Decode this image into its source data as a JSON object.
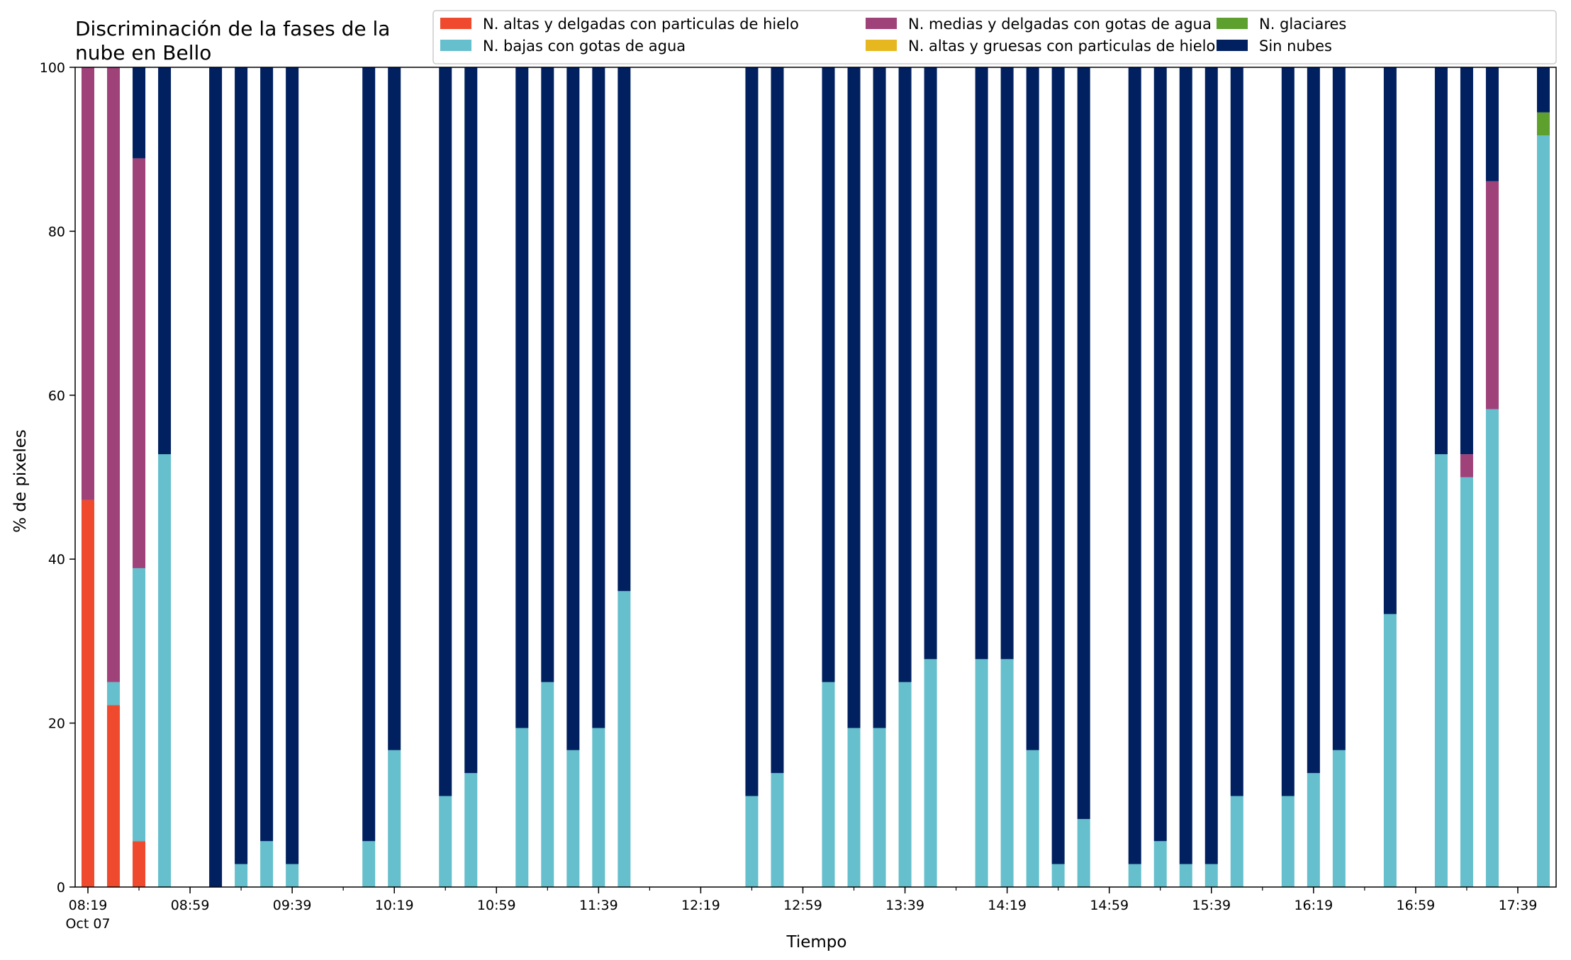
{
  "chart_data": {
    "type": "bar",
    "stacked": true,
    "title": "Discriminación de la fases de la nube en Bello",
    "title_lines": [
      "Discriminación de la fases de la",
      "nube en Bello"
    ],
    "xlabel": "Tiempo",
    "ylabel": "% de pixeles",
    "ylim": [
      0,
      100
    ],
    "yticks": [
      0,
      20,
      40,
      60,
      80,
      100
    ],
    "x_date_label": "Oct 07",
    "x_range_minutes": [
      "08:14",
      "17:54"
    ],
    "major_ticks": [
      "08:19",
      "08:59",
      "09:39",
      "10:19",
      "10:59",
      "11:39",
      "12:19",
      "12:59",
      "13:39",
      "14:19",
      "14:59",
      "15:39",
      "16:19",
      "16:59",
      "17:39"
    ],
    "minor_tick_step_minutes": 20,
    "bar_width_minutes": 5,
    "grid": false,
    "legend_position": "top-right",
    "series": [
      {
        "name": "N. altas y delgadas con particulas de hielo",
        "color": "#ef4a2d"
      },
      {
        "name": "N. altas y gruesas con particulas de hielo",
        "color": "#e6b71e"
      },
      {
        "name": "N. bajas con gotas de agua",
        "color": "#65bfcc"
      },
      {
        "name": "N. glaciares",
        "color": "#5da02e"
      },
      {
        "name": "N. medias y delgadas con gotas de agua",
        "color": "#9f427a"
      },
      {
        "name": "Sin nubes",
        "color": "#002060"
      }
    ],
    "legend_order": [
      0,
      2,
      4,
      1,
      3,
      5
    ],
    "bars": [
      {
        "time": "08:19",
        "values": [
          47.2,
          0,
          0,
          0,
          52.8,
          0
        ]
      },
      {
        "time": "08:29",
        "values": [
          22.2,
          0,
          2.8,
          0,
          75.0,
          0
        ]
      },
      {
        "time": "08:39",
        "values": [
          5.6,
          0,
          33.3,
          0,
          50.0,
          11.1
        ]
      },
      {
        "time": "08:49",
        "values": [
          0,
          0,
          52.8,
          0,
          0,
          47.2
        ]
      },
      {
        "time": "09:09",
        "values": [
          0,
          0,
          0,
          0,
          0,
          100
        ]
      },
      {
        "time": "09:19",
        "values": [
          0,
          0,
          2.8,
          0,
          0,
          97.2
        ]
      },
      {
        "time": "09:29",
        "values": [
          0,
          0,
          5.6,
          0,
          0,
          94.4
        ]
      },
      {
        "time": "09:39",
        "values": [
          0,
          0,
          2.8,
          0,
          0,
          97.2
        ]
      },
      {
        "time": "10:09",
        "values": [
          0,
          0,
          5.6,
          0,
          0,
          94.4
        ]
      },
      {
        "time": "10:19",
        "values": [
          0,
          0,
          16.7,
          0,
          0,
          83.3
        ]
      },
      {
        "time": "10:39",
        "values": [
          0,
          0,
          11.1,
          0,
          0,
          88.9
        ]
      },
      {
        "time": "10:49",
        "values": [
          0,
          0,
          13.9,
          0,
          0,
          86.1
        ]
      },
      {
        "time": "11:09",
        "values": [
          0,
          0,
          19.4,
          0,
          0,
          80.6
        ]
      },
      {
        "time": "11:19",
        "values": [
          0,
          0,
          25.0,
          0,
          0,
          75.0
        ]
      },
      {
        "time": "11:29",
        "values": [
          0,
          0,
          16.7,
          0,
          0,
          83.3
        ]
      },
      {
        "time": "11:39",
        "values": [
          0,
          0,
          19.4,
          0,
          0,
          80.6
        ]
      },
      {
        "time": "11:49",
        "values": [
          0,
          0,
          36.1,
          0,
          0,
          63.9
        ]
      },
      {
        "time": "12:39",
        "values": [
          0,
          0,
          11.1,
          0,
          0,
          88.9
        ]
      },
      {
        "time": "12:49",
        "values": [
          0,
          0,
          13.9,
          0,
          0,
          86.1
        ]
      },
      {
        "time": "13:09",
        "values": [
          0,
          0,
          25.0,
          0,
          0,
          75.0
        ]
      },
      {
        "time": "13:19",
        "values": [
          0,
          0,
          19.4,
          0,
          0,
          80.6
        ]
      },
      {
        "time": "13:29",
        "values": [
          0,
          0,
          19.4,
          0,
          0,
          80.6
        ]
      },
      {
        "time": "13:39",
        "values": [
          0,
          0,
          25.0,
          0,
          0,
          75.0
        ]
      },
      {
        "time": "13:49",
        "values": [
          0,
          0,
          27.8,
          0,
          0,
          72.2
        ]
      },
      {
        "time": "14:09",
        "values": [
          0,
          0,
          27.8,
          0,
          0,
          72.2
        ]
      },
      {
        "time": "14:19",
        "values": [
          0,
          0,
          27.8,
          0,
          0,
          72.2
        ]
      },
      {
        "time": "14:29",
        "values": [
          0,
          0,
          16.7,
          0,
          0,
          83.3
        ]
      },
      {
        "time": "14:39",
        "values": [
          0,
          0,
          2.8,
          0,
          0,
          97.2
        ]
      },
      {
        "time": "14:49",
        "values": [
          0,
          0,
          8.3,
          0,
          0,
          91.7
        ]
      },
      {
        "time": "15:09",
        "values": [
          0,
          0,
          2.8,
          0,
          0,
          97.2
        ]
      },
      {
        "time": "15:19",
        "values": [
          0,
          0,
          5.6,
          0,
          0,
          94.4
        ]
      },
      {
        "time": "15:29",
        "values": [
          0,
          0,
          2.8,
          0,
          0,
          97.2
        ]
      },
      {
        "time": "15:39",
        "values": [
          0,
          0,
          2.8,
          0,
          0,
          97.2
        ]
      },
      {
        "time": "15:49",
        "values": [
          0,
          0,
          11.1,
          0,
          0,
          88.9
        ]
      },
      {
        "time": "16:09",
        "values": [
          0,
          0,
          11.1,
          0,
          0,
          88.9
        ]
      },
      {
        "time": "16:19",
        "values": [
          0,
          0,
          13.9,
          0,
          0,
          86.1
        ]
      },
      {
        "time": "16:29",
        "values": [
          0,
          0,
          16.7,
          0,
          0,
          83.3
        ]
      },
      {
        "time": "16:49",
        "values": [
          0,
          0,
          33.3,
          0,
          0,
          66.7
        ]
      },
      {
        "time": "17:09",
        "values": [
          0,
          0,
          52.8,
          0,
          0,
          47.2
        ]
      },
      {
        "time": "17:19",
        "values": [
          0,
          0,
          50.0,
          0,
          2.8,
          47.2
        ]
      },
      {
        "time": "17:29",
        "values": [
          0,
          0,
          58.3,
          0,
          27.8,
          13.9
        ]
      },
      {
        "time": "17:49",
        "values": [
          0,
          0,
          91.7,
          2.8,
          0,
          5.5
        ]
      }
    ]
  }
}
